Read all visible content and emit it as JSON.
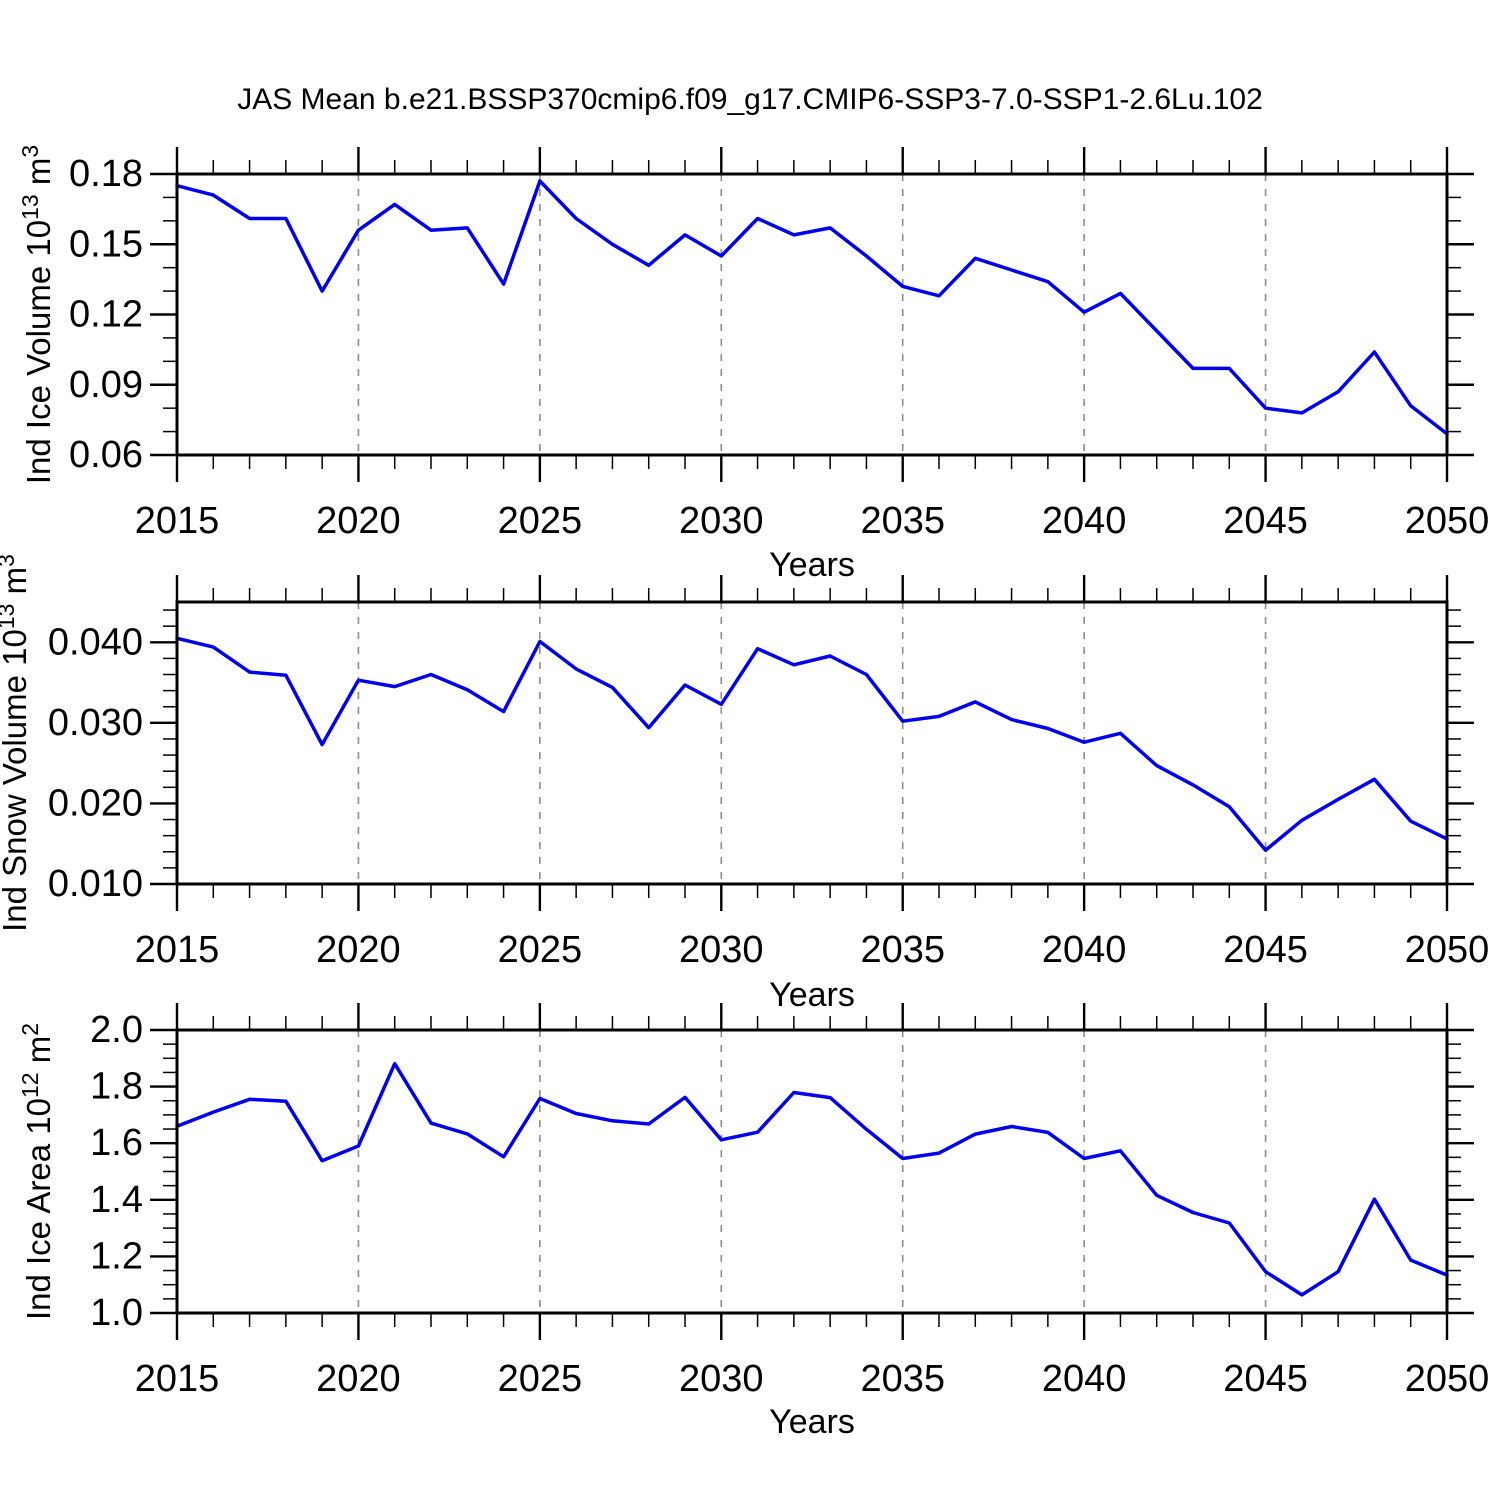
{
  "title": "JAS Mean b.e21.BSSP370cmip6.f09_g17.CMIP6-SSP3-7.0-SSP1-2.6Lu.102",
  "colors": {
    "line": "#0000ee",
    "axis": "#000000",
    "grid": "#8c8c8c",
    "background": "#ffffff"
  },
  "years": [
    2015,
    2016,
    2017,
    2018,
    2019,
    2020,
    2021,
    2022,
    2023,
    2024,
    2025,
    2026,
    2027,
    2028,
    2029,
    2030,
    2031,
    2032,
    2033,
    2034,
    2035,
    2036,
    2037,
    2038,
    2039,
    2040,
    2041,
    2042,
    2043,
    2044,
    2045,
    2046,
    2047,
    2048,
    2049,
    2050
  ],
  "x_axis": {
    "label": "Years",
    "min": 2015,
    "max": 2050,
    "major_step": 5,
    "minor_step": 1,
    "major_ticks": [
      2015,
      2020,
      2025,
      2030,
      2035,
      2040,
      2045,
      2050
    ],
    "major_tick_labels": [
      "2015",
      "2020",
      "2025",
      "2030",
      "2035",
      "2040",
      "2045",
      "2050"
    ],
    "gridline_years": [
      2020,
      2025,
      2030,
      2035,
      2040,
      2045
    ]
  },
  "chart_data": [
    {
      "type": "line",
      "name": "ice-volume",
      "ylabel": "Ind Ice Volume 10^13 m^3",
      "ylabel_parts": [
        {
          "t": "Ind Ice Volume 10"
        },
        {
          "t": "13",
          "sup": true
        },
        {
          "t": " m"
        },
        {
          "t": "3",
          "sup": true
        }
      ],
      "ylim": [
        0.06,
        0.18
      ],
      "yminor": 0.01,
      "yticks": [
        {
          "v": 0.06,
          "label": "0.06"
        },
        {
          "v": 0.09,
          "label": "0.09"
        },
        {
          "v": 0.12,
          "label": "0.12"
        },
        {
          "v": 0.15,
          "label": "0.15"
        },
        {
          "v": 0.18,
          "label": "0.18"
        }
      ],
      "values": [
        0.175,
        0.171,
        0.161,
        0.161,
        0.13,
        0.156,
        0.167,
        0.156,
        0.157,
        0.133,
        0.177,
        0.161,
        0.15,
        0.141,
        0.154,
        0.145,
        0.161,
        0.154,
        0.157,
        0.145,
        0.132,
        0.128,
        0.144,
        0.139,
        0.134,
        0.121,
        0.129,
        0.113,
        0.097,
        0.097,
        0.08,
        0.078,
        0.087,
        0.104,
        0.081,
        0.069
      ]
    },
    {
      "type": "line",
      "name": "snow-volume",
      "ylabel": "Ind Snow Volume 10^13 m^3",
      "ylabel_parts": [
        {
          "t": "Ind Snow Volume 10"
        },
        {
          "t": "13",
          "sup": true
        },
        {
          "t": " m"
        },
        {
          "t": "3",
          "sup": true
        }
      ],
      "ylim": [
        0.01,
        0.045
      ],
      "yminor": 0.002,
      "yticks": [
        {
          "v": 0.01,
          "label": "0.010"
        },
        {
          "v": 0.02,
          "label": "0.020"
        },
        {
          "v": 0.03,
          "label": "0.030"
        },
        {
          "v": 0.04,
          "label": "0.040"
        }
      ],
      "values": [
        0.0405,
        0.0394,
        0.0363,
        0.0359,
        0.0273,
        0.0353,
        0.0345,
        0.036,
        0.0341,
        0.0314,
        0.0401,
        0.0367,
        0.0344,
        0.0294,
        0.0347,
        0.0323,
        0.0392,
        0.0372,
        0.0383,
        0.036,
        0.0302,
        0.0308,
        0.0326,
        0.0304,
        0.0293,
        0.0276,
        0.0287,
        0.0247,
        0.0223,
        0.0196,
        0.0142,
        0.0179,
        0.0205,
        0.023,
        0.0178,
        0.0156
      ]
    },
    {
      "type": "line",
      "name": "ice-area",
      "ylabel": "Ind Ice Area 10^12 m^2",
      "ylabel_parts": [
        {
          "t": "Ind Ice Area 10"
        },
        {
          "t": "12",
          "sup": true
        },
        {
          "t": " m"
        },
        {
          "t": "2",
          "sup": true
        }
      ],
      "ylim": [
        1.0,
        2.0
      ],
      "yminor": 0.05,
      "yticks": [
        {
          "v": 1.0,
          "label": "1.0"
        },
        {
          "v": 1.2,
          "label": "1.2"
        },
        {
          "v": 1.4,
          "label": "1.4"
        },
        {
          "v": 1.6,
          "label": "1.6"
        },
        {
          "v": 1.8,
          "label": "1.8"
        },
        {
          "v": 2.0,
          "label": "2.0"
        }
      ],
      "values": [
        1.66,
        1.71,
        1.755,
        1.748,
        1.538,
        1.59,
        1.881,
        1.671,
        1.633,
        1.552,
        1.758,
        1.705,
        1.679,
        1.668,
        1.762,
        1.612,
        1.639,
        1.779,
        1.761,
        1.649,
        1.546,
        1.565,
        1.632,
        1.659,
        1.638,
        1.546,
        1.573,
        1.416,
        1.355,
        1.318,
        1.146,
        1.064,
        1.146,
        1.402,
        1.187,
        1.134
      ]
    }
  ]
}
